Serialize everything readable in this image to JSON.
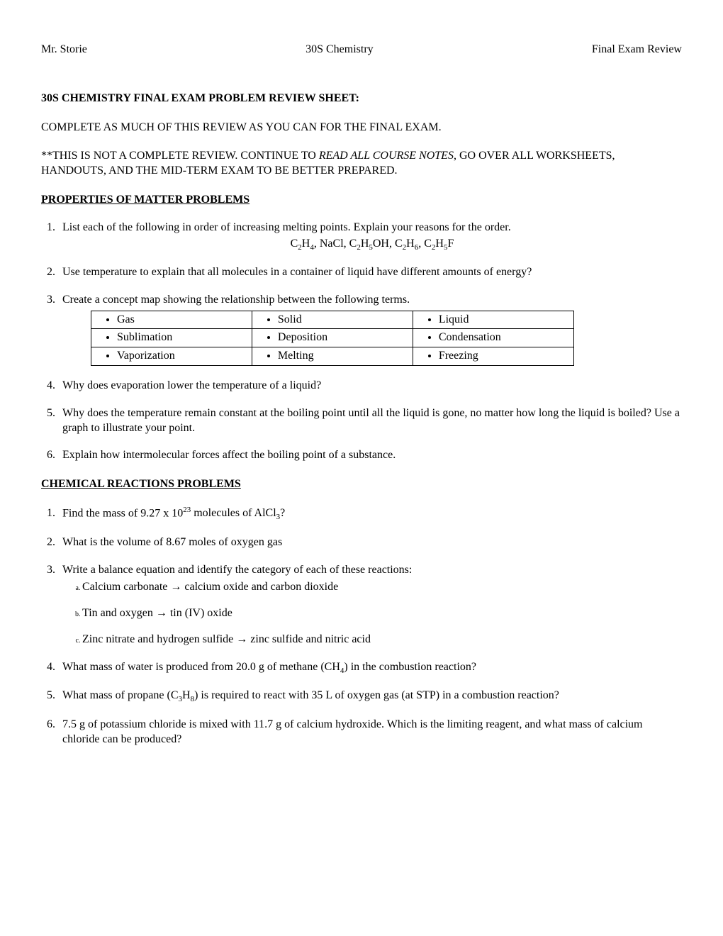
{
  "header": {
    "left": "Mr. Storie",
    "center": "30S Chemistry",
    "right": "Final Exam Review"
  },
  "title": "30S CHEMISTRY FINAL EXAM PROBLEM REVIEW SHEET:",
  "instruction1": "COMPLETE AS MUCH OF THIS REVIEW AS YOU CAN FOR THE FINAL EXAM.",
  "instruction2_pre": "**THIS IS NOT A COMPLETE REVIEW.  CONTINUE TO ",
  "instruction2_italic": "READ ALL COURSE NOTES",
  "instruction2_post": ", GO OVER ALL WORKSHEETS, HANDOUTS, AND THE MID-TERM EXAM TO BE BETTER PREPARED.",
  "section1": {
    "heading": "PROPERTIES OF MATTER PROBLEMS",
    "q1": "List each of the following in order of increasing melting points. Explain your reasons for the order.",
    "q1_compounds": "C₂H₄, NaCl, C₂H₅OH, C₂H₆, C₂H₅F",
    "q2": "Use temperature to explain that all molecules in a container of liquid have different amounts of energy?",
    "q3": "Create a concept map showing the relationship between the following terms.",
    "table": {
      "r0": {
        "c0": "Gas",
        "c1": "Solid",
        "c2": "Liquid"
      },
      "r1": {
        "c0": "Sublimation",
        "c1": "Deposition",
        "c2": "Condensation"
      },
      "r2": {
        "c0": "Vaporization",
        "c1": "Melting",
        "c2": "Freezing"
      }
    },
    "q4": "Why does evaporation lower the temperature of a liquid?",
    "q5": "Why does the temperature remain constant at the boiling point until all the liquid is gone, no matter how long the liquid is boiled?  Use a graph to illustrate your point.",
    "q6": "Explain how intermolecular forces affect the boiling point of a substance."
  },
  "section2": {
    "heading": "CHEMICAL REACTIONS PROBLEMS",
    "q1_pre": "Find the mass of 9.27 x 10",
    "q1_sup": "23",
    "q1_post": " molecules of AlCl₃?",
    "q2": "What is the volume of 8.67 moles of oxygen gas",
    "q3": "Write a balance equation and identify the category of each of these reactions:",
    "q3a": "Calcium carbonate  →  calcium oxide  and carbon dioxide",
    "q3b": "Tin and oxygen  →  tin (IV) oxide",
    "q3c": "Zinc nitrate and hydrogen sulfide   →  zinc sulfide and nitric acid",
    "q4": "What mass of water is produced from 20.0 g of methane (CH₄) in the combustion reaction?",
    "q5": "What mass of propane (C₃H₈) is required to react with 35 L of oxygen gas (at STP) in a combustion reaction?",
    "q6": "7.5 g of potassium chloride is mixed with 11.7 g of calcium hydroxide.  Which is the limiting reagent, and what mass of calcium chloride can be produced?"
  }
}
